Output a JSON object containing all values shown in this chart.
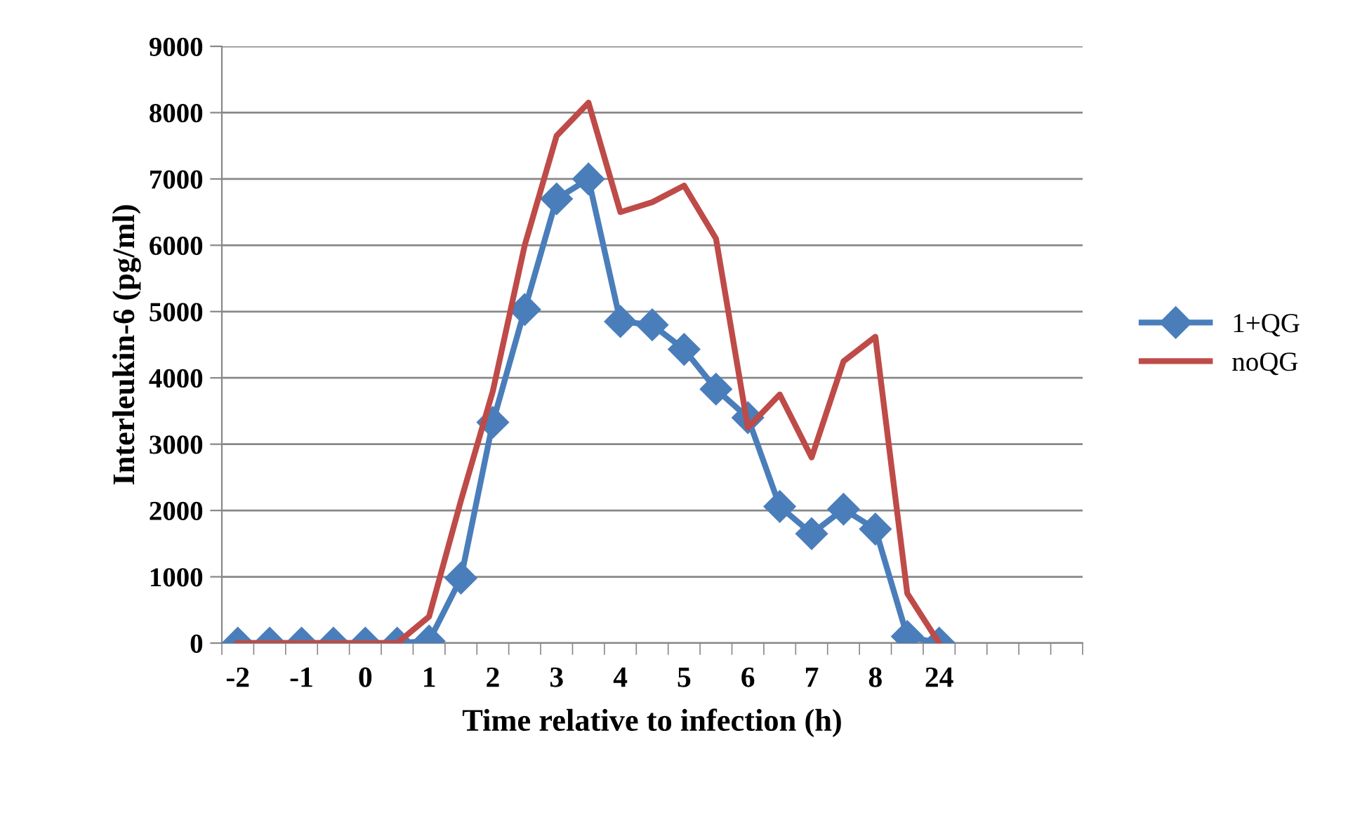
{
  "chart_data": {
    "type": "line",
    "xlabel": "Time relative to infection (h)",
    "ylabel": "Interleukin-6 (pg/ml)",
    "categories": [
      "-2",
      null,
      "-1",
      null,
      "0",
      null,
      "1",
      null,
      "2",
      null,
      "3",
      null,
      "4",
      null,
      "5",
      null,
      "6",
      null,
      "7",
      null,
      "8",
      null,
      "24",
      null,
      null,
      null,
      null
    ],
    "series": [
      {
        "name": "1+QG",
        "color": "#4a7ebb",
        "marker": "diamond",
        "values": [
          0,
          0,
          0,
          0,
          0,
          0,
          30,
          980,
          3330,
          5030,
          6700,
          7000,
          4850,
          4800,
          4430,
          3830,
          3400,
          2060,
          1650,
          2020,
          1720,
          100,
          0,
          null,
          null,
          null,
          null
        ]
      },
      {
        "name": "noQG",
        "color": "#be4b48",
        "marker": "none",
        "values": [
          0,
          0,
          0,
          0,
          0,
          0,
          400,
          2150,
          3800,
          6000,
          7650,
          8150,
          6500,
          6650,
          6900,
          6100,
          3250,
          3750,
          2800,
          4250,
          4620,
          750,
          0,
          null,
          null,
          null,
          null
        ]
      }
    ],
    "ylim": [
      0,
      9000
    ],
    "yticks": [
      0,
      1000,
      2000,
      3000,
      4000,
      5000,
      6000,
      7000,
      8000,
      9000
    ],
    "grid": "y",
    "legend": "right",
    "line_style": "solid"
  }
}
